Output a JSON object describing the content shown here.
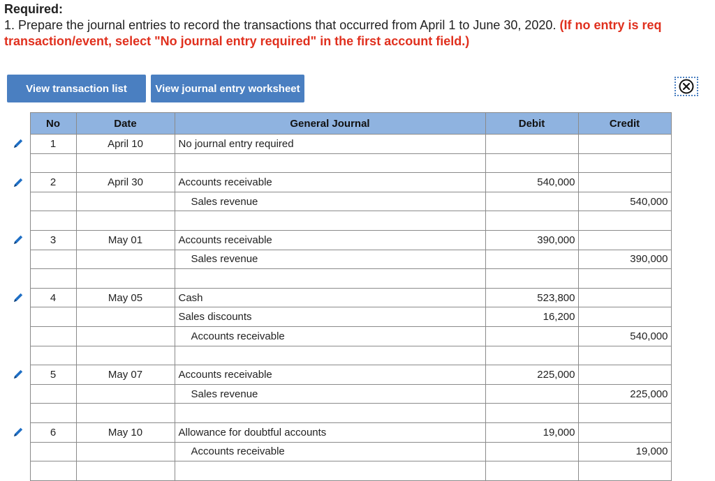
{
  "required": {
    "title": "Required:",
    "text": "1. Prepare the journal entries to record the transactions that occurred from April 1 to June 30, 2020.",
    "note": "(If no entry is req",
    "note_line2": "transaction/event, select \"No journal entry required\" in the first account field.)"
  },
  "buttons": {
    "view_list": "View transaction list",
    "view_worksheet": "View journal entry worksheet"
  },
  "table": {
    "headers": {
      "no": "No",
      "date": "Date",
      "account": "General Journal",
      "debit": "Debit",
      "credit": "Credit"
    },
    "rows": [
      {
        "no": "1",
        "date": "April 10",
        "account": "No journal entry required",
        "debit": "",
        "credit": "",
        "indent": false,
        "edit": true
      },
      {
        "no": "",
        "date": "",
        "account": "",
        "debit": "",
        "credit": "",
        "indent": false,
        "edit": false
      },
      {
        "no": "2",
        "date": "April 30",
        "account": "Accounts receivable",
        "debit": "540,000",
        "credit": "",
        "indent": false,
        "edit": true
      },
      {
        "no": "",
        "date": "",
        "account": "Sales revenue",
        "debit": "",
        "credit": "540,000",
        "indent": true,
        "edit": false
      },
      {
        "no": "",
        "date": "",
        "account": "",
        "debit": "",
        "credit": "",
        "indent": false,
        "edit": false
      },
      {
        "no": "3",
        "date": "May 01",
        "account": "Accounts receivable",
        "debit": "390,000",
        "credit": "",
        "indent": false,
        "edit": true
      },
      {
        "no": "",
        "date": "",
        "account": "Sales revenue",
        "debit": "",
        "credit": "390,000",
        "indent": true,
        "edit": false
      },
      {
        "no": "",
        "date": "",
        "account": "",
        "debit": "",
        "credit": "",
        "indent": false,
        "edit": false
      },
      {
        "no": "4",
        "date": "May 05",
        "account": "Cash",
        "debit": "523,800",
        "credit": "",
        "indent": false,
        "edit": true
      },
      {
        "no": "",
        "date": "",
        "account": "Sales discounts",
        "debit": "16,200",
        "credit": "",
        "indent": false,
        "edit": false
      },
      {
        "no": "",
        "date": "",
        "account": "Accounts receivable",
        "debit": "",
        "credit": "540,000",
        "indent": true,
        "edit": false
      },
      {
        "no": "",
        "date": "",
        "account": "",
        "debit": "",
        "credit": "",
        "indent": false,
        "edit": false
      },
      {
        "no": "5",
        "date": "May 07",
        "account": "Accounts receivable",
        "debit": "225,000",
        "credit": "",
        "indent": false,
        "edit": true
      },
      {
        "no": "",
        "date": "",
        "account": "Sales revenue",
        "debit": "",
        "credit": "225,000",
        "indent": true,
        "edit": false
      },
      {
        "no": "",
        "date": "",
        "account": "",
        "debit": "",
        "credit": "",
        "indent": false,
        "edit": false
      },
      {
        "no": "6",
        "date": "May 10",
        "account": "Allowance for doubtful accounts",
        "debit": "19,000",
        "credit": "",
        "indent": false,
        "edit": true
      },
      {
        "no": "",
        "date": "",
        "account": "Accounts receivable",
        "debit": "",
        "credit": "19,000",
        "indent": true,
        "edit": false
      },
      {
        "no": "",
        "date": "",
        "account": "",
        "debit": "",
        "credit": "",
        "indent": false,
        "edit": false
      }
    ]
  },
  "icons": {
    "edit": "pencil-icon",
    "close": "close-circle-icon"
  },
  "colors": {
    "header_bg": "#8fb3e0",
    "button_bg": "#4a7fc1",
    "note_red": "#e0301e",
    "pencil_blue": "#1f6fc5"
  }
}
